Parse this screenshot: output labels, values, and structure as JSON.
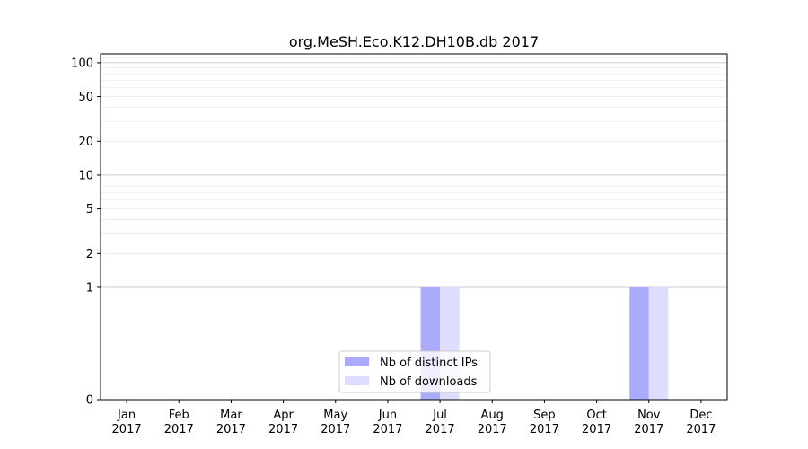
{
  "chart_data": {
    "type": "bar",
    "title": "org.MeSH.Eco.K12.DH10B.db 2017",
    "xlabel": "",
    "ylabel": "",
    "y_scale": "symlog",
    "y_ticks": [
      0,
      1,
      2,
      5,
      10,
      20,
      50,
      100
    ],
    "y_tick_labels": [
      "0",
      "1",
      "2",
      "5",
      "10",
      "20",
      "50",
      "100"
    ],
    "ylim": [
      0,
      120
    ],
    "grid": true,
    "legend_position": "bottom-center",
    "categories": [
      {
        "month": "Jan",
        "year": "2017"
      },
      {
        "month": "Feb",
        "year": "2017"
      },
      {
        "month": "Mar",
        "year": "2017"
      },
      {
        "month": "Apr",
        "year": "2017"
      },
      {
        "month": "May",
        "year": "2017"
      },
      {
        "month": "Jun",
        "year": "2017"
      },
      {
        "month": "Jul",
        "year": "2017"
      },
      {
        "month": "Aug",
        "year": "2017"
      },
      {
        "month": "Sep",
        "year": "2017"
      },
      {
        "month": "Oct",
        "year": "2017"
      },
      {
        "month": "Nov",
        "year": "2017"
      },
      {
        "month": "Dec",
        "year": "2017"
      }
    ],
    "series": [
      {
        "name": "Nb of distinct IPs",
        "color": "#aaaaff",
        "values": [
          0,
          0,
          0,
          0,
          0,
          0,
          1,
          0,
          0,
          0,
          1,
          0
        ]
      },
      {
        "name": "Nb of downloads",
        "color": "#ddddff",
        "values": [
          0,
          0,
          0,
          0,
          0,
          0,
          1,
          0,
          0,
          0,
          1,
          0
        ]
      }
    ]
  }
}
